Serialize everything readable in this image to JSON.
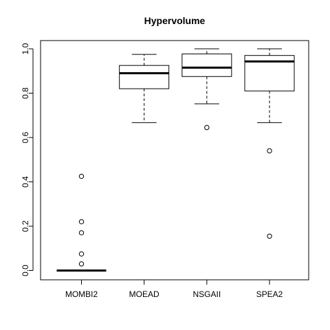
{
  "chart_data": {
    "type": "boxplot",
    "title": "Hypervolume",
    "xlabel": "",
    "ylabel": "",
    "categories": [
      "MOMBI2",
      "MOEAD",
      "NSGAII",
      "SPEA2"
    ],
    "yticks": [
      "0.0",
      "0.2",
      "0.4",
      "0.6",
      "0.8",
      "1.0"
    ],
    "ylim": [
      -0.04,
      1.04
    ],
    "grid": false,
    "boxes": [
      {
        "name": "MOMBI2",
        "whisker_low": 0.0,
        "q1": 0.0,
        "median": 0.0,
        "q3": 0.0,
        "whisker_high": 0.0,
        "outliers": [
          0.425,
          0.22,
          0.17,
          0.075,
          0.03
        ]
      },
      {
        "name": "MOEAD",
        "whisker_low": 0.667,
        "q1": 0.82,
        "median": 0.89,
        "q3": 0.925,
        "whisker_high": 0.975,
        "outliers": []
      },
      {
        "name": "NSGAII",
        "whisker_low": 0.752,
        "q1": 0.875,
        "median": 0.915,
        "q3": 0.977,
        "whisker_high": 1.0,
        "outliers": [
          0.645
        ]
      },
      {
        "name": "SPEA2",
        "whisker_low": 0.667,
        "q1": 0.81,
        "median": 0.943,
        "q3": 0.97,
        "whisker_high": 1.0,
        "outliers": [
          0.54,
          0.155
        ]
      }
    ]
  }
}
